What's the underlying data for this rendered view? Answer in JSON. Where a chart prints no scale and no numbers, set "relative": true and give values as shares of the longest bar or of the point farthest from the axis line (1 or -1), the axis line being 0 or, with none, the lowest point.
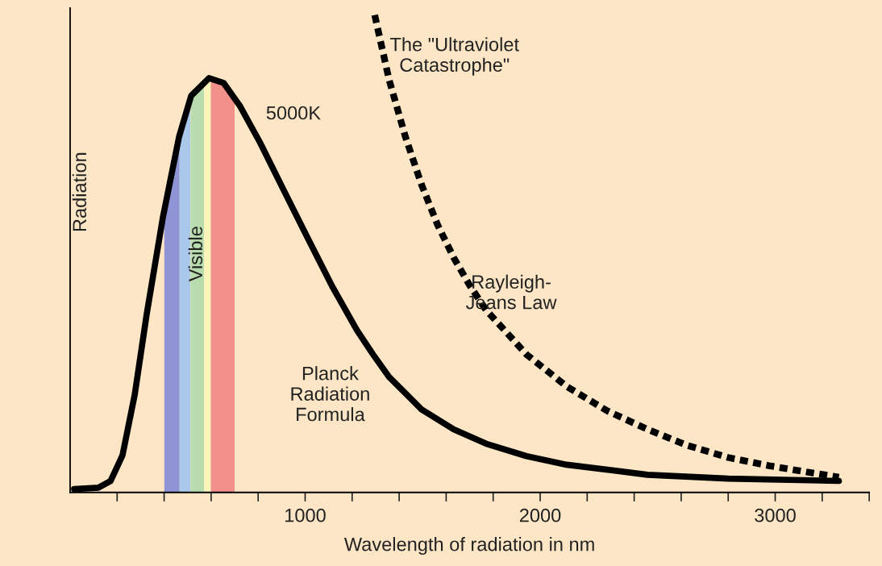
{
  "chart_data": {
    "type": "line",
    "relative": true,
    "xlabel": "Wavelength of radiation in nm",
    "ylabel": "Radiation",
    "xlim": [
      0,
      3400
    ],
    "xticks": [
      {
        "value": 200,
        "label": null
      },
      {
        "value": 400,
        "label": null
      },
      {
        "value": 600,
        "label": null
      },
      {
        "value": 800,
        "label": null
      },
      1000,
      {
        "value": 1200,
        "label": null
      },
      {
        "value": 1400,
        "label": null
      },
      {
        "value": 1600,
        "label": null
      },
      {
        "value": 1800,
        "label": null
      },
      2000,
      {
        "value": 2200,
        "label": null
      },
      {
        "value": 2400,
        "label": null
      },
      {
        "value": 2600,
        "label": null
      },
      {
        "value": 2800,
        "label": null
      },
      3000,
      {
        "value": 3200,
        "label": null
      },
      {
        "value": 3400,
        "label": null
      }
    ],
    "grid": false,
    "legend": false,
    "bands": [
      {
        "axis": "x",
        "from": 400,
        "to": 466,
        "color": "#8f95d4"
      },
      {
        "axis": "x",
        "from": 466,
        "to": 512,
        "color": "#a9c8ea"
      },
      {
        "axis": "x",
        "from": 512,
        "to": 570,
        "color": "#b8dcae",
        "label": "Visible"
      },
      {
        "axis": "x",
        "from": 570,
        "to": 598,
        "color": "#fcf4b8"
      },
      {
        "axis": "x",
        "from": 598,
        "to": 700,
        "color": "#f2908a"
      }
    ],
    "annotations": [
      "5000K",
      "The \"Ultraviolet\nCatastrophe\"",
      "Rayleigh-\nJeans Law",
      "Planck\nRadiation\nFormula"
    ],
    "series": [
      {
        "color": "#000000",
        "line_style": "solid",
        "x": [
          17,
          120,
          172,
          223,
          275,
          326,
          395,
          464,
          515,
          591,
          653,
          722,
          808,
          911,
          1014,
          1117,
          1220,
          1289,
          1357,
          1495,
          1632,
          1770,
          1942,
          2113,
          2457,
          2801,
          3271
        ],
        "values": [
          0.007,
          0.01,
          0.024,
          0.078,
          0.205,
          0.374,
          0.577,
          0.746,
          0.831,
          0.868,
          0.858,
          0.81,
          0.733,
          0.631,
          0.53,
          0.43,
          0.34,
          0.289,
          0.242,
          0.174,
          0.132,
          0.102,
          0.076,
          0.058,
          0.037,
          0.029,
          0.024
        ]
      },
      {
        "color": "#000000",
        "line_style": "dotted",
        "x": [
          1296,
          1357,
          1426,
          1495,
          1564,
          1632,
          1701,
          1770,
          1942,
          2113,
          2285,
          2457,
          2629,
          2801,
          2973,
          3144,
          3271
        ],
        "values": [
          1.0,
          0.865,
          0.746,
          0.645,
          0.56,
          0.492,
          0.433,
          0.382,
          0.289,
          0.222,
          0.171,
          0.132,
          0.098,
          0.073,
          0.056,
          0.042,
          0.032
        ]
      }
    ]
  }
}
